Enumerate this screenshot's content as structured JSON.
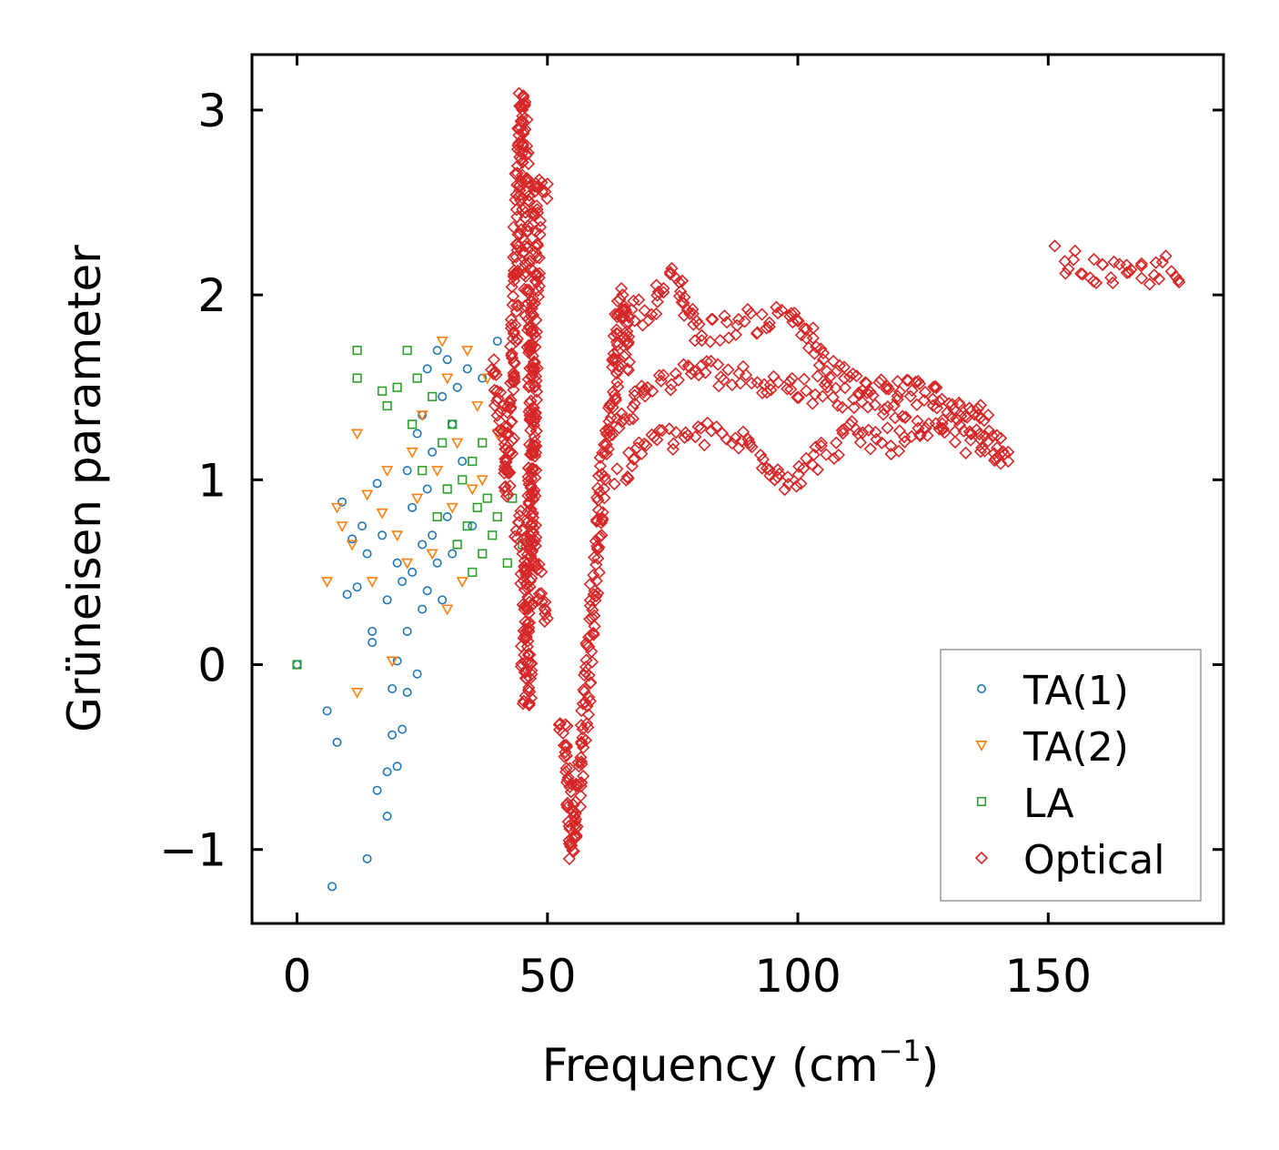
{
  "chart_data": {
    "type": "scatter",
    "title": "",
    "xlabel": "Frequency (cm",
    "xlabel_sup": "−1",
    "xlabel_close": ")",
    "ylabel": "Grüneisen parameter",
    "xlim": [
      -9,
      185
    ],
    "ylim": [
      -1.4,
      3.3
    ],
    "xticks": [
      0,
      50,
      100,
      150
    ],
    "yticks": [
      -1,
      0,
      1,
      2,
      3
    ],
    "xtick_labels": [
      "0",
      "50",
      "100",
      "150"
    ],
    "ytick_labels": [
      "−1",
      "0",
      "1",
      "2",
      "3"
    ],
    "legend_position": "bottom-right",
    "series": [
      {
        "name": "TA(1)",
        "marker": "circle",
        "color": "#1f77b4",
        "points": [
          [
            0,
            0
          ],
          [
            6,
            -0.25
          ],
          [
            7,
            -1.2
          ],
          [
            8,
            -0.42
          ],
          [
            9,
            0.88
          ],
          [
            10,
            0.38
          ],
          [
            11,
            0.68
          ],
          [
            12,
            0.42
          ],
          [
            13,
            0.75
          ],
          [
            14,
            -1.05
          ],
          [
            14,
            0.6
          ],
          [
            15,
            0.12
          ],
          [
            15,
            0.18
          ],
          [
            16,
            -0.68
          ],
          [
            16,
            0.98
          ],
          [
            17,
            0.7
          ],
          [
            18,
            -0.82
          ],
          [
            18,
            -0.58
          ],
          [
            18,
            0.35
          ],
          [
            19,
            -0.38
          ],
          [
            19,
            -0.13
          ],
          [
            20,
            -0.55
          ],
          [
            20,
            0.55
          ],
          [
            20,
            0.02
          ],
          [
            21,
            -0.35
          ],
          [
            21,
            0.45
          ],
          [
            22,
            -0.15
          ],
          [
            22,
            0.18
          ],
          [
            22,
            1.05
          ],
          [
            23,
            0.5
          ],
          [
            23,
            0.85
          ],
          [
            24,
            -0.05
          ],
          [
            24,
            1.25
          ],
          [
            25,
            0.3
          ],
          [
            25,
            0.65
          ],
          [
            25,
            1.35
          ],
          [
            26,
            0.4
          ],
          [
            26,
            0.95
          ],
          [
            26,
            1.6
          ],
          [
            27,
            0.7
          ],
          [
            27,
            1.15
          ],
          [
            28,
            0.55
          ],
          [
            28,
            1.7
          ],
          [
            29,
            0.35
          ],
          [
            29,
            1.45
          ],
          [
            30,
            0.8
          ],
          [
            30,
            1.65
          ],
          [
            31,
            0.6
          ],
          [
            31,
            1.3
          ],
          [
            32,
            1.5
          ],
          [
            33,
            1.1
          ],
          [
            34,
            1.6
          ],
          [
            35,
            0.75
          ],
          [
            37,
            1.55
          ],
          [
            40,
            1.75
          ]
        ]
      },
      {
        "name": "TA(2)",
        "marker": "triangle-down",
        "color": "#ff7f0e",
        "points": [
          [
            6,
            0.45
          ],
          [
            8,
            0.85
          ],
          [
            9,
            0.75
          ],
          [
            11,
            0.65
          ],
          [
            12,
            1.25
          ],
          [
            12,
            -0.15
          ],
          [
            14,
            0.92
          ],
          [
            15,
            0.45
          ],
          [
            17,
            0.82
          ],
          [
            18,
            1.05
          ],
          [
            19,
            0.02
          ],
          [
            20,
            0.7
          ],
          [
            22,
            0.55
          ],
          [
            23,
            1.15
          ],
          [
            24,
            0.9
          ],
          [
            25,
            1.35
          ],
          [
            27,
            0.6
          ],
          [
            28,
            1.05
          ],
          [
            29,
            1.75
          ],
          [
            30,
            0.3
          ],
          [
            30,
            1.55
          ],
          [
            31,
            0.85
          ],
          [
            32,
            1.2
          ],
          [
            33,
            0.45
          ],
          [
            34,
            1.7
          ],
          [
            35,
            0.95
          ],
          [
            36,
            1.4
          ],
          [
            37,
            1.0
          ],
          [
            38,
            1.55
          ],
          [
            40,
            1.25
          ]
        ]
      },
      {
        "name": "LA",
        "marker": "square",
        "color": "#2ca02c",
        "points": [
          [
            0,
            0
          ],
          [
            12,
            1.7
          ],
          [
            12,
            1.55
          ],
          [
            17,
            1.48
          ],
          [
            18,
            1.4
          ],
          [
            20,
            1.5
          ],
          [
            22,
            1.7
          ],
          [
            23,
            1.3
          ],
          [
            24,
            1.55
          ],
          [
            25,
            1.05
          ],
          [
            27,
            1.45
          ],
          [
            28,
            0.8
          ],
          [
            29,
            1.2
          ],
          [
            30,
            0.95
          ],
          [
            31,
            1.3
          ],
          [
            32,
            0.65
          ],
          [
            33,
            1.0
          ],
          [
            34,
            0.75
          ],
          [
            35,
            1.1
          ],
          [
            35,
            0.5
          ],
          [
            36,
            0.85
          ],
          [
            37,
            1.2
          ],
          [
            37,
            0.6
          ],
          [
            38,
            0.9
          ],
          [
            39,
            0.7
          ],
          [
            40,
            0.8
          ],
          [
            42,
            1.05
          ],
          [
            42,
            0.55
          ],
          [
            43,
            0.9
          ],
          [
            45,
            0.65
          ]
        ]
      },
      {
        "name": "Optical",
        "marker": "diamond",
        "color": "#d62728",
        "bands": [
          [
            [
              39,
              1.6
            ],
            [
              41,
              1.25
            ],
            [
              42,
              0.95
            ],
            [
              43,
              1.5
            ],
            [
              44,
              2.4
            ],
            [
              45,
              3.08
            ],
            [
              46,
              2.2
            ],
            [
              47,
              1.3
            ],
            [
              47,
              0.7
            ],
            [
              48,
              0.45
            ],
            [
              50,
              0.25
            ]
          ],
          [
            [
              44,
              0.8
            ],
            [
              45,
              0.5
            ],
            [
              46,
              0.2
            ],
            [
              45,
              0.0
            ],
            [
              46,
              -0.2
            ],
            [
              48,
              2.6
            ],
            [
              49,
              2.55
            ],
            [
              50,
              2.6
            ]
          ],
          [
            [
              53,
              -0.3
            ],
            [
              54,
              -0.6
            ],
            [
              55,
              -0.9
            ],
            [
              55,
              -1.03
            ],
            [
              56,
              -0.7
            ],
            [
              57,
              -0.4
            ],
            [
              58,
              -0.1
            ],
            [
              59,
              0.3
            ],
            [
              60,
              0.65
            ],
            [
              61,
              1.0
            ],
            [
              62,
              1.25
            ],
            [
              63,
              1.4
            ],
            [
              64,
              1.8
            ],
            [
              65,
              2.0
            ],
            [
              66,
              1.6
            ]
          ],
          [
            [
              62,
              1.25
            ],
            [
              70,
              1.5
            ],
            [
              80,
              1.6
            ],
            [
              90,
              1.55
            ],
            [
              100,
              1.5
            ],
            [
              110,
              1.45
            ],
            [
              120,
              1.4
            ],
            [
              130,
              1.35
            ],
            [
              135,
              1.3
            ],
            [
              140,
              1.15
            ],
            [
              142,
              1.1
            ]
          ],
          [
            [
              63,
              1.95
            ],
            [
              70,
              1.9
            ],
            [
              75,
              2.1
            ],
            [
              80,
              1.8
            ],
            [
              90,
              1.85
            ],
            [
              100,
              1.9
            ],
            [
              105,
              1.6
            ],
            [
              115,
              1.5
            ],
            [
              125,
              1.48
            ],
            [
              138,
              1.35
            ]
          ],
          [
            [
              64,
              1.0
            ],
            [
              70,
              1.2
            ],
            [
              80,
              1.25
            ],
            [
              90,
              1.2
            ],
            [
              98,
              1.0
            ],
            [
              103,
              1.1
            ],
            [
              110,
              1.25
            ],
            [
              120,
              1.2
            ],
            [
              130,
              1.25
            ],
            [
              142,
              1.15
            ]
          ],
          [
            [
              152,
              2.2
            ],
            [
              155,
              2.17
            ],
            [
              160,
              2.12
            ],
            [
              165,
              2.1
            ],
            [
              170,
              2.12
            ],
            [
              173,
              2.15
            ],
            [
              176,
              2.08
            ]
          ]
        ]
      }
    ]
  }
}
